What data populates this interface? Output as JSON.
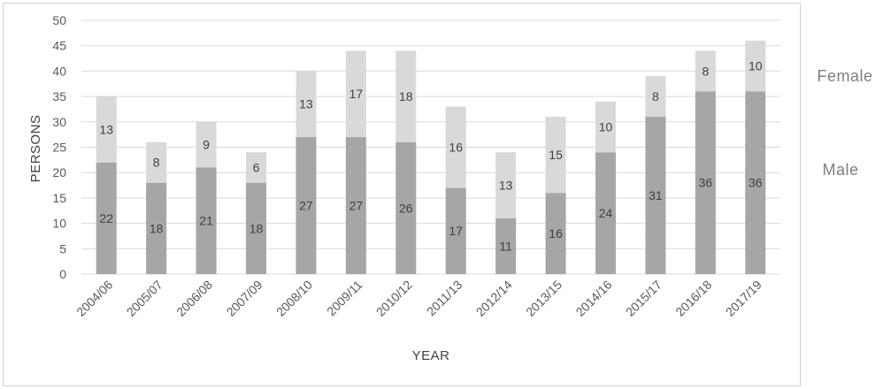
{
  "chart_data": {
    "type": "bar",
    "stacked": true,
    "categories": [
      "2004/06",
      "2005/07",
      "2006/08",
      "2007/09",
      "2008/10",
      "2009/11",
      "2010/12",
      "2011/13",
      "2012/14",
      "2013/15",
      "2014/16",
      "2015/17",
      "2016/18",
      "2017/19"
    ],
    "series": [
      {
        "name": "Male",
        "color": "#a6a6a6",
        "values": [
          22,
          18,
          21,
          18,
          27,
          27,
          26,
          17,
          11,
          16,
          24,
          31,
          36,
          36
        ]
      },
      {
        "name": "Female",
        "color": "#d9d9d9",
        "values": [
          13,
          8,
          9,
          6,
          13,
          17,
          18,
          16,
          13,
          15,
          10,
          8,
          8,
          10
        ]
      }
    ],
    "title": "",
    "xlabel": "YEAR",
    "ylabel": "PERSONS",
    "ylim": [
      0,
      50
    ],
    "ytick_step": 5,
    "grid": true,
    "legend_position": "right"
  }
}
